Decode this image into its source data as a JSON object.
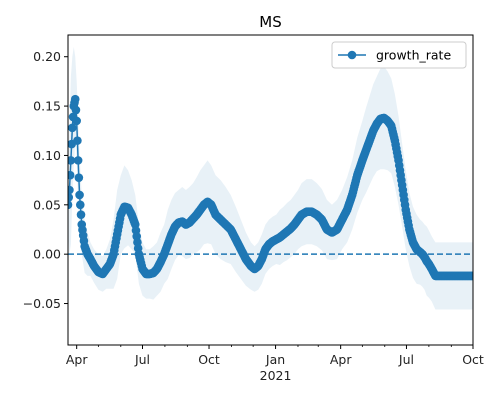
{
  "chart_data": {
    "type": "line",
    "title": "MS",
    "xlabel": "",
    "ylabel": "",
    "x_start": "2020-03-20",
    "x_end": "2021-10-01",
    "xlim": [
      "2020-03-20",
      "2021-10-01"
    ],
    "ylim": [
      -0.092,
      0.222
    ],
    "yticks": [
      -0.05,
      0.0,
      0.05,
      0.1,
      0.15,
      0.2
    ],
    "ytick_labels": [
      "−0.05",
      "0.00",
      "0.05",
      "0.10",
      "0.15",
      "0.20"
    ],
    "xticks": [
      "2020-04-01",
      "2020-07-01",
      "2020-10-01",
      "2021-01-01",
      "2021-04-01",
      "2021-07-01",
      "2021-10-01"
    ],
    "xtick_labels": [
      "Apr",
      "Jul",
      "Oct",
      "Jan",
      "Apr",
      "Jul",
      "Oct"
    ],
    "year_label": "2021",
    "reference_line": {
      "y": 0.0,
      "style": "dashed",
      "color": "#1f77b4"
    },
    "legend": {
      "position": "top-right",
      "entries": [
        "growth_rate"
      ]
    },
    "series": [
      {
        "name": "growth_rate",
        "color": "#1f77b4",
        "marker": "circle",
        "x": [
          "2020-03-20",
          "2020-03-22",
          "2020-03-24",
          "2020-03-26",
          "2020-03-28",
          "2020-03-30",
          "2020-04-01",
          "2020-04-03",
          "2020-04-05",
          "2020-04-08",
          "2020-04-12",
          "2020-04-16",
          "2020-04-20",
          "2020-04-25",
          "2020-05-01",
          "2020-05-07",
          "2020-05-12",
          "2020-05-17",
          "2020-05-22",
          "2020-05-27",
          "2020-06-01",
          "2020-06-06",
          "2020-06-11",
          "2020-06-16",
          "2020-06-21",
          "2020-06-26",
          "2020-07-01",
          "2020-07-06",
          "2020-07-11",
          "2020-07-16",
          "2020-07-21",
          "2020-07-26",
          "2020-07-31",
          "2020-08-05",
          "2020-08-10",
          "2020-08-15",
          "2020-08-20",
          "2020-08-25",
          "2020-08-30",
          "2020-09-04",
          "2020-09-09",
          "2020-09-14",
          "2020-09-19",
          "2020-09-24",
          "2020-09-29",
          "2020-10-04",
          "2020-10-10",
          "2020-10-17",
          "2020-10-24",
          "2020-10-31",
          "2020-11-07",
          "2020-11-14",
          "2020-11-21",
          "2020-11-28",
          "2020-12-03",
          "2020-12-08",
          "2020-12-13",
          "2020-12-18",
          "2020-12-23",
          "2020-12-28",
          "2021-01-02",
          "2021-01-07",
          "2021-01-12",
          "2021-01-17",
          "2021-01-22",
          "2021-01-27",
          "2021-02-01",
          "2021-02-06",
          "2021-02-13",
          "2021-02-20",
          "2021-02-27",
          "2021-03-06",
          "2021-03-13",
          "2021-03-20",
          "2021-03-27",
          "2021-04-03",
          "2021-04-10",
          "2021-04-17",
          "2021-04-24",
          "2021-05-01",
          "2021-05-06",
          "2021-05-11",
          "2021-05-16",
          "2021-05-21",
          "2021-05-26",
          "2021-05-31",
          "2021-06-05",
          "2021-06-10",
          "2021-06-15",
          "2021-06-20",
          "2021-06-25",
          "2021-06-30",
          "2021-07-05",
          "2021-07-10",
          "2021-07-15",
          "2021-07-20",
          "2021-07-23",
          "2021-07-26",
          "2021-07-29",
          "2021-08-01",
          "2021-08-05",
          "2021-08-10",
          "2021-08-15",
          "2021-08-20",
          "2021-08-25",
          "2021-08-30",
          "2021-09-04",
          "2021-09-09",
          "2021-09-14",
          "2021-09-19",
          "2021-09-24",
          "2021-09-29",
          "2021-10-01"
        ],
        "values": [
          0.05,
          0.065,
          0.095,
          0.128,
          0.15,
          0.157,
          0.135,
          0.095,
          0.06,
          0.03,
          0.008,
          0.0,
          -0.005,
          -0.012,
          -0.018,
          -0.02,
          -0.015,
          -0.01,
          0.0,
          0.02,
          0.04,
          0.048,
          0.047,
          0.04,
          0.03,
          0.0,
          -0.015,
          -0.02,
          -0.02,
          -0.019,
          -0.015,
          -0.008,
          0.0,
          0.01,
          0.02,
          0.028,
          0.032,
          0.033,
          0.03,
          0.032,
          0.036,
          0.04,
          0.045,
          0.05,
          0.053,
          0.05,
          0.04,
          0.035,
          0.03,
          0.025,
          0.015,
          0.005,
          -0.005,
          -0.012,
          -0.015,
          -0.012,
          -0.005,
          0.005,
          0.01,
          0.013,
          0.015,
          0.017,
          0.02,
          0.023,
          0.026,
          0.03,
          0.035,
          0.04,
          0.043,
          0.043,
          0.04,
          0.035,
          0.025,
          0.022,
          0.025,
          0.035,
          0.045,
          0.06,
          0.08,
          0.095,
          0.105,
          0.115,
          0.125,
          0.132,
          0.137,
          0.138,
          0.135,
          0.13,
          0.115,
          0.095,
          0.07,
          0.045,
          0.025,
          0.012,
          0.005,
          0.002,
          0.0,
          -0.003,
          -0.007,
          -0.01,
          -0.015,
          -0.022,
          -0.022,
          -0.022,
          -0.022,
          -0.022,
          -0.022,
          -0.022,
          -0.022,
          -0.022,
          -0.022,
          -0.022,
          -0.022
        ],
        "upper": [
          0.08,
          0.13,
          0.18,
          0.2,
          0.21,
          0.2,
          0.175,
          0.14,
          0.1,
          0.06,
          0.035,
          0.022,
          0.012,
          0.005,
          0.0,
          -0.002,
          0.005,
          0.015,
          0.035,
          0.065,
          0.08,
          0.09,
          0.085,
          0.075,
          0.06,
          0.03,
          0.012,
          0.005,
          0.005,
          0.008,
          0.012,
          0.022,
          0.03,
          0.045,
          0.055,
          0.062,
          0.065,
          0.068,
          0.065,
          0.068,
          0.072,
          0.078,
          0.085,
          0.09,
          0.095,
          0.09,
          0.08,
          0.075,
          0.068,
          0.06,
          0.048,
          0.035,
          0.022,
          0.012,
          0.008,
          0.012,
          0.02,
          0.03,
          0.035,
          0.038,
          0.04,
          0.045,
          0.048,
          0.052,
          0.055,
          0.06,
          0.065,
          0.072,
          0.076,
          0.076,
          0.072,
          0.066,
          0.055,
          0.05,
          0.055,
          0.065,
          0.078,
          0.095,
          0.118,
          0.135,
          0.148,
          0.16,
          0.172,
          0.18,
          0.188,
          0.19,
          0.185,
          0.178,
          0.162,
          0.14,
          0.112,
          0.085,
          0.062,
          0.048,
          0.04,
          0.035,
          0.033,
          0.03,
          0.028,
          0.024,
          0.018,
          0.012,
          0.012,
          0.012,
          0.012,
          0.012,
          0.012,
          0.012,
          0.012,
          0.012,
          0.012,
          0.012,
          0.012
        ]
      }
    ]
  }
}
